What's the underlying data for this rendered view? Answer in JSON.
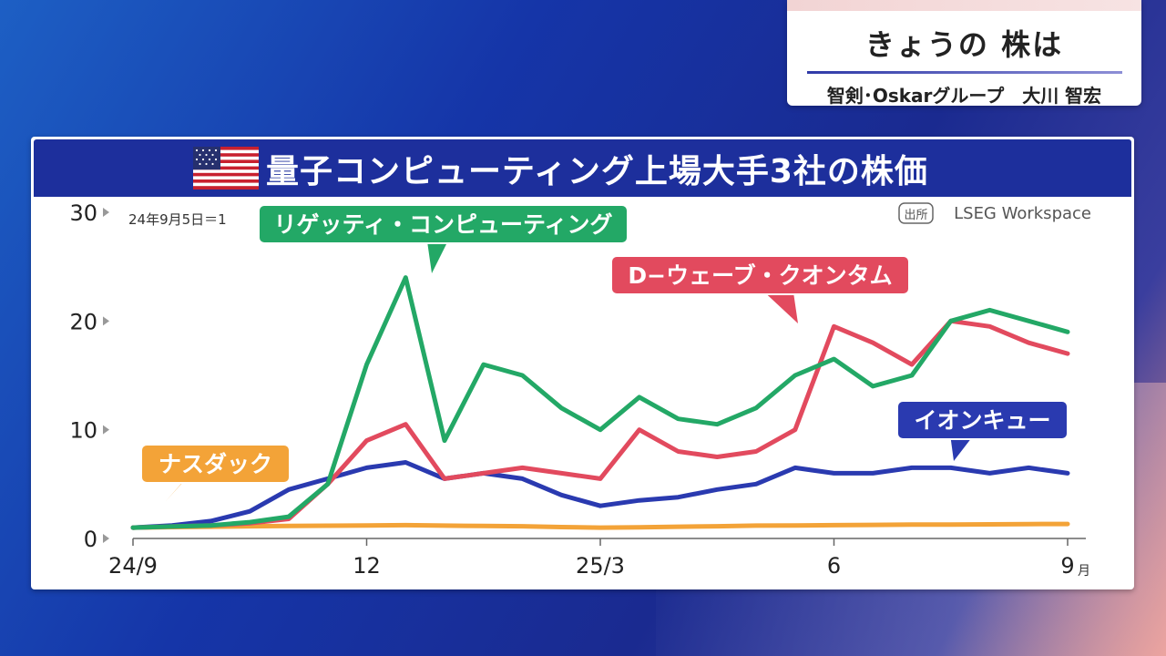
{
  "header": {
    "program_title": "きょうの 株は",
    "guest": "智剣･Oskarグループ　大川 智宏"
  },
  "icons": {
    "flag": "us-flag-icon"
  },
  "chart_data": {
    "type": "line",
    "title": "量子コンピューティング上場大手3社の株価",
    "note": "24年9月5日＝1",
    "source_tag": "出所",
    "source": "LSEG Workspace",
    "x_tick_labels": [
      "24/9",
      "12",
      "25/3",
      "6",
      "9"
    ],
    "x_unit": "月",
    "y_ticks": [
      0,
      10,
      20,
      30
    ],
    "ylim": [
      0,
      30
    ],
    "grid": false,
    "x_months": [
      0,
      0.5,
      1,
      1.5,
      2,
      2.5,
      3,
      3.5,
      4,
      4.5,
      5,
      5.5,
      6,
      6.5,
      7,
      7.5,
      8,
      8.5,
      9,
      9.5,
      10,
      10.5,
      11,
      11.5,
      12
    ],
    "series": [
      {
        "name": "リゲッティ・コンピューティング",
        "color": "#23a866",
        "values": [
          1.0,
          1.1,
          1.2,
          1.5,
          2.0,
          5.0,
          16.0,
          24.0,
          9.0,
          16.0,
          15.0,
          12.0,
          10.0,
          13.0,
          11.0,
          10.5,
          12.0,
          15.0,
          16.5,
          14.0,
          15.0,
          20.0,
          21.0,
          20.0,
          19.0
        ]
      },
      {
        "name": "D−ウェーブ・クオンタム",
        "color": "#e24a5e",
        "values": [
          1.0,
          1.1,
          1.2,
          1.4,
          1.8,
          5.0,
          9.0,
          10.5,
          5.5,
          6.0,
          6.5,
          6.0,
          5.5,
          10.0,
          8.0,
          7.5,
          8.0,
          10.0,
          19.5,
          18.0,
          16.0,
          20.0,
          19.5,
          18.0,
          17.0
        ]
      },
      {
        "name": "イオンキュー",
        "color": "#2a3ab0",
        "values": [
          1.0,
          1.2,
          1.6,
          2.5,
          4.5,
          5.5,
          6.5,
          7.0,
          5.5,
          6.0,
          5.5,
          4.0,
          3.0,
          3.5,
          3.8,
          4.5,
          5.0,
          6.5,
          6.0,
          6.0,
          6.5,
          6.5,
          6.0,
          6.5,
          6.0
        ]
      },
      {
        "name": "ナスダック",
        "color": "#f3a338",
        "values": [
          1.0,
          1.05,
          1.08,
          1.12,
          1.15,
          1.17,
          1.2,
          1.22,
          1.18,
          1.15,
          1.12,
          1.05,
          1.0,
          1.02,
          1.08,
          1.12,
          1.18,
          1.2,
          1.22,
          1.25,
          1.27,
          1.28,
          1.3,
          1.32,
          1.33
        ]
      }
    ],
    "annotations": [
      "リゲッティ・コンピューティング",
      "D−ウェーブ・クオンタム",
      "イオンキュー",
      "ナスダック"
    ]
  }
}
